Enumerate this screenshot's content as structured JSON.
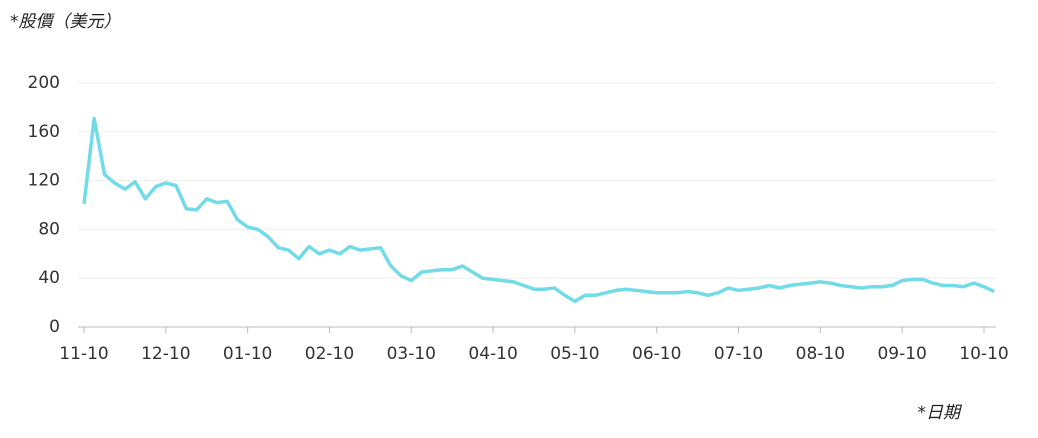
{
  "chart_data": {
    "type": "line",
    "y_title": "*股價（美元）",
    "x_title": "*日期",
    "categories": [
      "11-10",
      null,
      null,
      null,
      null,
      null,
      null,
      null,
      "12-10",
      null,
      null,
      null,
      null,
      null,
      null,
      null,
      "01-10",
      null,
      null,
      null,
      null,
      null,
      null,
      null,
      "02-10",
      null,
      null,
      null,
      null,
      null,
      null,
      null,
      "03-10",
      null,
      null,
      null,
      null,
      null,
      null,
      null,
      "04-10",
      null,
      null,
      null,
      null,
      null,
      null,
      null,
      "05-10",
      null,
      null,
      null,
      null,
      null,
      null,
      null,
      "06-10",
      null,
      null,
      null,
      null,
      null,
      null,
      null,
      "07-10",
      null,
      null,
      null,
      null,
      null,
      null,
      null,
      "08-10",
      null,
      null,
      null,
      null,
      null,
      null,
      null,
      "09-10",
      null,
      null,
      null,
      null,
      null,
      null,
      null,
      "10-10",
      null
    ],
    "values": [
      101,
      171,
      125,
      118,
      113,
      119,
      105,
      115,
      118,
      116,
      97,
      96,
      105,
      102,
      103,
      88,
      82,
      80,
      74,
      65,
      63,
      56,
      66,
      60,
      63,
      60,
      66,
      63,
      64,
      65,
      50,
      42,
      38,
      45,
      46,
      47,
      47,
      50,
      45,
      40,
      39,
      38,
      37,
      34,
      31,
      31,
      32,
      26,
      21,
      26,
      26,
      28,
      30,
      31,
      30,
      29,
      28,
      28,
      28,
      29,
      28,
      26,
      28,
      32,
      30,
      31,
      32,
      34,
      32,
      34,
      35,
      36,
      37,
      36,
      34,
      33,
      32,
      33,
      33,
      34,
      38,
      39,
      39,
      36,
      34,
      34,
      33,
      36,
      33,
      29
    ],
    "color": "#72dbe8",
    "ylim": [
      0,
      200
    ],
    "yticks": [
      0,
      40,
      80,
      120,
      160,
      200
    ],
    "grid": true
  }
}
